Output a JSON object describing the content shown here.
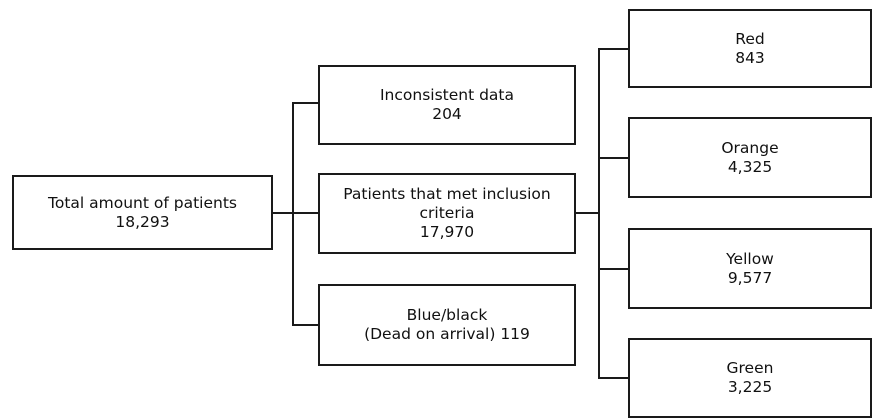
{
  "total": {
    "label": "Total amount of patients",
    "count": "18,293"
  },
  "branches": [
    {
      "label": "Inconsistent data",
      "count": "204"
    },
    {
      "label_line1": "Patients that met inclusion",
      "label_line2": "criteria",
      "count": "17,970"
    },
    {
      "label_line1": "Blue/black",
      "label_line2": "(Dead on arrival) 119"
    }
  ],
  "categories": [
    {
      "label": "Red",
      "count": "843"
    },
    {
      "label": "Orange",
      "count": "4,325"
    },
    {
      "label": "Yellow",
      "count": "9,577"
    },
    {
      "label": "Green",
      "count": "3,225"
    }
  ]
}
